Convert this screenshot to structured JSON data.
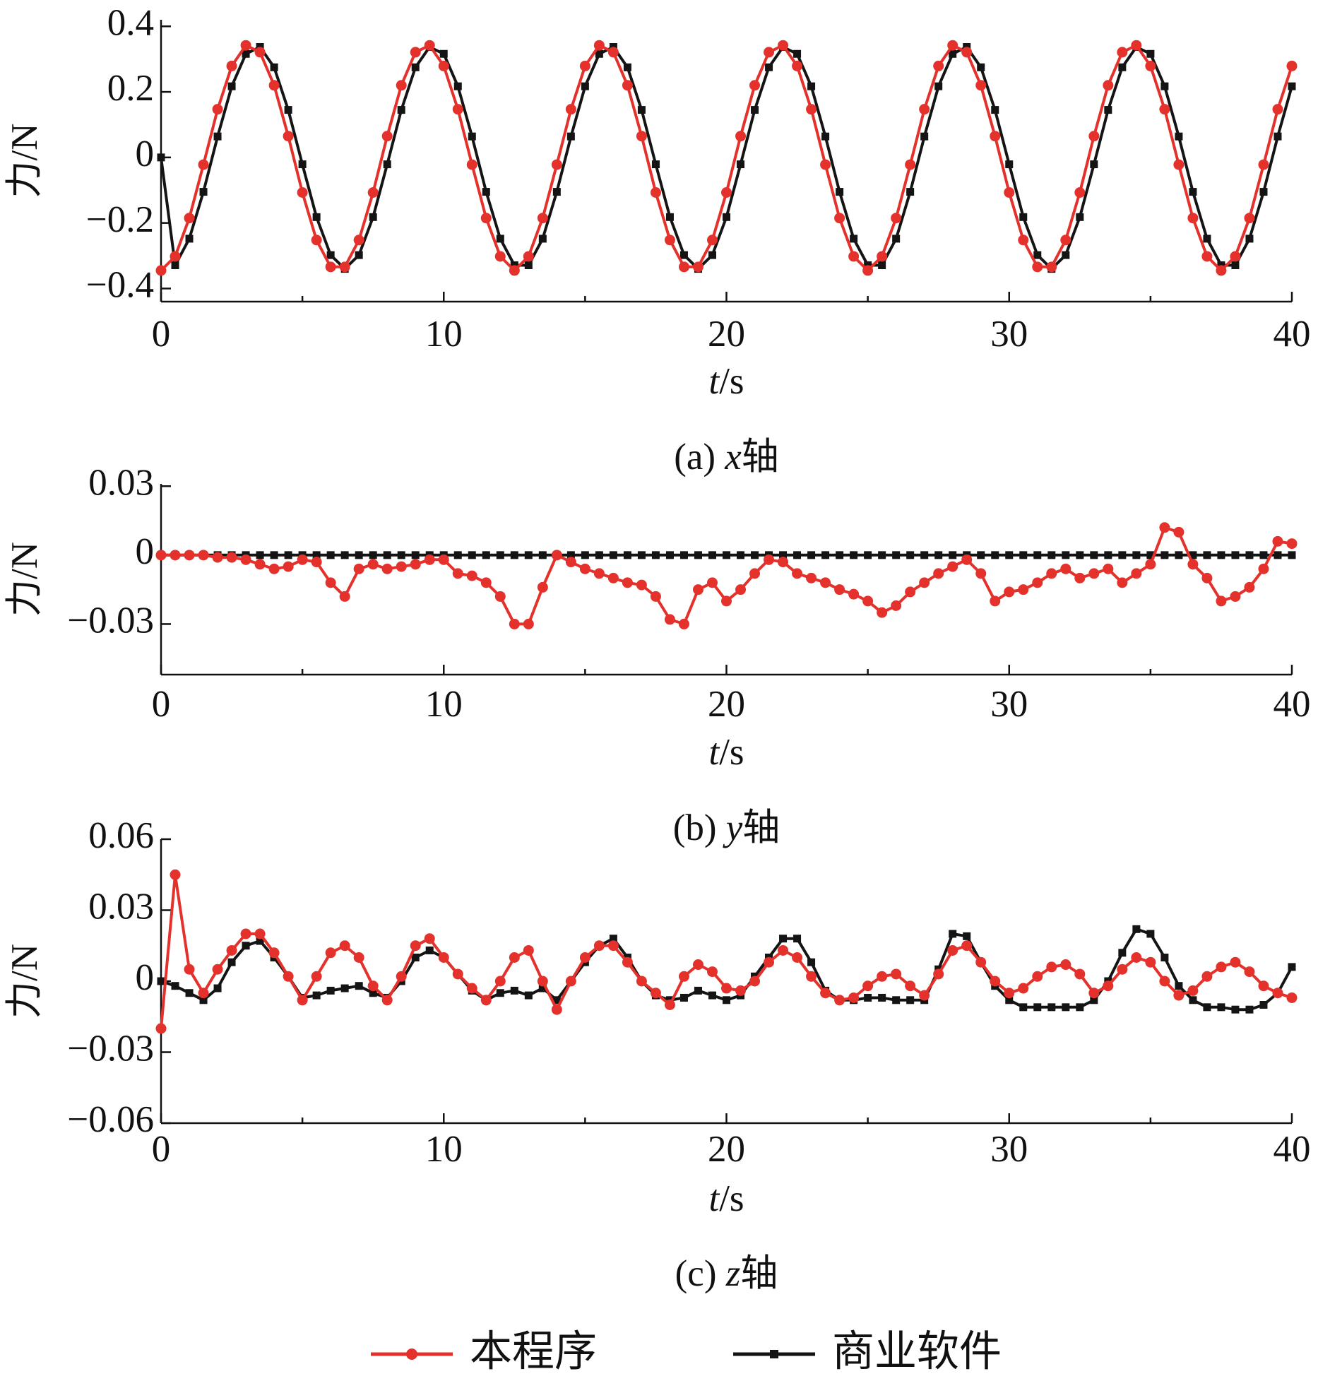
{
  "legend": [
    {
      "name": "本程序",
      "color": "#e4312b",
      "marker": "circle"
    },
    {
      "name": "商业软件",
      "color": "#141414",
      "marker": "square"
    }
  ],
  "chart_data": [
    {
      "type": "line",
      "ylabel": "力/N",
      "xlabel": [
        "t",
        "/s"
      ],
      "caption": [
        "(a) ",
        "x",
        "轴"
      ],
      "xlim": [
        0,
        40
      ],
      "xticks": [
        0,
        10,
        20,
        30,
        40
      ],
      "xminorticks": [
        5,
        15,
        25,
        35
      ],
      "ylim": [
        -0.44,
        0.42
      ],
      "yticks": [
        {
          "value": -0.4,
          "label": "−0.4"
        },
        {
          "value": -0.2,
          "label": "−0.2"
        },
        0,
        0.2,
        0.4
      ],
      "x": [
        0,
        0.5,
        1,
        1.5,
        2,
        2.5,
        3,
        3.5,
        4,
        4.5,
        5,
        5.5,
        6,
        6.5,
        7,
        7.5,
        8,
        8.5,
        9,
        9.5,
        10,
        10.5,
        11,
        11.5,
        12,
        12.5,
        13,
        13.5,
        14,
        14.5,
        15,
        15.5,
        16,
        16.5,
        17,
        17.5,
        18,
        18.5,
        19,
        19.5,
        20,
        20.5,
        21,
        21.5,
        22,
        22.5,
        23,
        23.5,
        24,
        24.5,
        25,
        25.5,
        26,
        26.5,
        27,
        27.5,
        28,
        28.5,
        29,
        29.5,
        30,
        30.5,
        31,
        31.5,
        32,
        32.5,
        33,
        33.5,
        34,
        34.5,
        35,
        35.5,
        36,
        36.5,
        37,
        37.5,
        38,
        38.5,
        39,
        39.5,
        40
      ],
      "series": [
        {
          "values": [
            -0.345,
            -0.302,
            -0.185,
            -0.022,
            0.147,
            0.279,
            0.342,
            0.321,
            0.22,
            0.065,
            -0.107,
            -0.252,
            -0.334,
            -0.334,
            -0.252,
            -0.107,
            0.065,
            0.22,
            0.321,
            0.342,
            0.279,
            0.147,
            -0.022,
            -0.185,
            -0.302,
            -0.345,
            -0.302,
            -0.185,
            -0.022,
            0.147,
            0.279,
            0.342,
            0.321,
            0.22,
            0.065,
            -0.107,
            -0.252,
            -0.334,
            -0.334,
            -0.252,
            -0.107,
            0.065,
            0.22,
            0.321,
            0.342,
            0.279,
            0.147,
            -0.022,
            -0.185,
            -0.302,
            -0.345,
            -0.302,
            -0.185,
            -0.022,
            0.147,
            0.279,
            0.342,
            0.321,
            0.22,
            0.065,
            -0.107,
            -0.252,
            -0.334,
            -0.334,
            -0.252,
            -0.107,
            0.065,
            0.22,
            0.321,
            0.342,
            0.279,
            0.147,
            -0.022,
            -0.185,
            -0.302,
            -0.345,
            -0.302,
            -0.185,
            -0.022,
            0.147,
            0.279
          ]
        },
        {
          "values": [
            0,
            -0.329,
            -0.248,
            -0.105,
            0.064,
            0.217,
            0.316,
            0.337,
            0.275,
            0.145,
            -0.021,
            -0.182,
            -0.298,
            -0.34,
            -0.298,
            -0.182,
            -0.021,
            0.145,
            0.275,
            0.337,
            0.316,
            0.217,
            0.064,
            -0.105,
            -0.248,
            -0.329,
            -0.329,
            -0.248,
            -0.105,
            0.064,
            0.217,
            0.316,
            0.337,
            0.275,
            0.145,
            -0.021,
            -0.182,
            -0.298,
            -0.34,
            -0.298,
            -0.182,
            -0.021,
            0.145,
            0.275,
            0.337,
            0.316,
            0.217,
            0.064,
            -0.105,
            -0.248,
            -0.329,
            -0.329,
            -0.248,
            -0.105,
            0.064,
            0.217,
            0.316,
            0.337,
            0.275,
            0.145,
            -0.021,
            -0.182,
            -0.298,
            -0.34,
            -0.298,
            -0.182,
            -0.021,
            0.145,
            0.275,
            0.337,
            0.316,
            0.217,
            0.064,
            -0.105,
            -0.248,
            -0.329,
            -0.329,
            -0.248,
            -0.105,
            0.064,
            0.217
          ]
        }
      ]
    },
    {
      "type": "line",
      "ylabel": "力/N",
      "xlabel": [
        "t",
        "/s"
      ],
      "caption": [
        "(b) ",
        "y",
        "轴"
      ],
      "xlim": [
        0,
        40
      ],
      "xticks": [
        0,
        10,
        20,
        30,
        40
      ],
      "xminorticks": [
        5,
        15,
        25,
        35
      ],
      "ylim": [
        -0.052,
        0.031
      ],
      "yticks": [
        {
          "value": -0.03,
          "label": "−0.03"
        },
        0,
        0.03
      ],
      "x": [
        0,
        0.5,
        1,
        1.5,
        2,
        2.5,
        3,
        3.5,
        4,
        4.5,
        5,
        5.5,
        6,
        6.5,
        7,
        7.5,
        8,
        8.5,
        9,
        9.5,
        10,
        10.5,
        11,
        11.5,
        12,
        12.5,
        13,
        13.5,
        14,
        14.5,
        15,
        15.5,
        16,
        16.5,
        17,
        17.5,
        18,
        18.5,
        19,
        19.5,
        20,
        20.5,
        21,
        21.5,
        22,
        22.5,
        23,
        23.5,
        24,
        24.5,
        25,
        25.5,
        26,
        26.5,
        27,
        27.5,
        28,
        28.5,
        29,
        29.5,
        30,
        30.5,
        31,
        31.5,
        32,
        32.5,
        33,
        33.5,
        34,
        34.5,
        35,
        35.5,
        36,
        36.5,
        37,
        37.5,
        38,
        38.5,
        39,
        39.5,
        40
      ],
      "series": [
        {
          "values": [
            0,
            0,
            0,
            0,
            -0.001,
            -0.001,
            -0.002,
            -0.004,
            -0.006,
            -0.005,
            -0.002,
            -0.003,
            -0.012,
            -0.018,
            -0.006,
            -0.004,
            -0.006,
            -0.005,
            -0.004,
            -0.002,
            -0.002,
            -0.008,
            -0.009,
            -0.012,
            -0.018,
            -0.03,
            -0.03,
            -0.014,
            0,
            -0.003,
            -0.006,
            -0.008,
            -0.01,
            -0.012,
            -0.013,
            -0.018,
            -0.028,
            -0.03,
            -0.015,
            -0.012,
            -0.02,
            -0.015,
            -0.008,
            -0.002,
            -0.003,
            -0.008,
            -0.01,
            -0.012,
            -0.015,
            -0.017,
            -0.02,
            -0.025,
            -0.022,
            -0.016,
            -0.012,
            -0.008,
            -0.005,
            -0.002,
            -0.008,
            -0.02,
            -0.016,
            -0.015,
            -0.012,
            -0.008,
            -0.006,
            -0.01,
            -0.008,
            -0.006,
            -0.012,
            -0.008,
            -0.004,
            0.012,
            0.01,
            -0.004,
            -0.01,
            -0.02,
            -0.018,
            -0.014,
            -0.006,
            0.006,
            0.005
          ]
        },
        {
          "values": [
            0,
            0,
            0,
            0,
            0,
            0,
            0,
            0,
            0,
            0,
            0,
            0,
            0,
            0,
            0,
            0,
            0,
            0,
            0,
            0,
            0,
            0,
            0,
            0,
            0,
            0,
            0,
            0,
            0,
            0,
            0,
            0,
            0,
            0,
            0,
            0,
            0,
            0,
            0,
            0,
            0,
            0,
            0,
            0,
            0,
            0,
            0,
            0,
            0,
            0,
            0,
            0,
            0,
            0,
            0,
            0,
            0,
            0,
            0,
            0,
            0,
            0,
            0,
            0,
            0,
            0,
            0,
            0,
            0,
            0,
            0,
            0,
            0,
            0,
            0,
            0,
            0,
            0,
            0,
            0,
            0
          ]
        }
      ]
    },
    {
      "type": "line",
      "ylabel": "力/N",
      "xlabel": [
        "t",
        "/s"
      ],
      "caption": [
        "(c) ",
        "z",
        "轴"
      ],
      "xlim": [
        0,
        40
      ],
      "xticks": [
        0,
        10,
        20,
        30,
        40
      ],
      "xminorticks": [
        5,
        15,
        25,
        35
      ],
      "ylim": [
        -0.06,
        0.06
      ],
      "yticks": [
        {
          "value": -0.06,
          "label": "−0.06"
        },
        {
          "value": -0.03,
          "label": "−0.03"
        },
        0,
        0.03,
        0.06
      ],
      "x": [
        0,
        0.5,
        1,
        1.5,
        2,
        2.5,
        3,
        3.5,
        4,
        4.5,
        5,
        5.5,
        6,
        6.5,
        7,
        7.5,
        8,
        8.5,
        9,
        9.5,
        10,
        10.5,
        11,
        11.5,
        12,
        12.5,
        13,
        13.5,
        14,
        14.5,
        15,
        15.5,
        16,
        16.5,
        17,
        17.5,
        18,
        18.5,
        19,
        19.5,
        20,
        20.5,
        21,
        21.5,
        22,
        22.5,
        23,
        23.5,
        24,
        24.5,
        25,
        25.5,
        26,
        26.5,
        27,
        27.5,
        28,
        28.5,
        29,
        29.5,
        30,
        30.5,
        31,
        31.5,
        32,
        32.5,
        33,
        33.5,
        34,
        34.5,
        35,
        35.5,
        36,
        36.5,
        37,
        37.5,
        38,
        38.5,
        39,
        39.5,
        40
      ],
      "series": [
        {
          "values": [
            -0.02,
            0.045,
            0.005,
            -0.005,
            0.005,
            0.013,
            0.02,
            0.02,
            0.012,
            0.002,
            -0.008,
            0.002,
            0.012,
            0.015,
            0.01,
            -0.002,
            -0.008,
            0.002,
            0.015,
            0.018,
            0.01,
            0.003,
            -0.003,
            -0.008,
            0,
            0.01,
            0.013,
            0,
            -0.012,
            0,
            0.01,
            0.015,
            0.015,
            0.008,
            0,
            -0.005,
            -0.01,
            0.002,
            0.007,
            0.004,
            -0.003,
            -0.004,
            0,
            0.008,
            0.013,
            0.01,
            0.002,
            -0.005,
            -0.008,
            -0.007,
            -0.002,
            0.002,
            0.003,
            -0.002,
            -0.006,
            0.003,
            0.013,
            0.015,
            0.008,
            0,
            -0.005,
            -0.003,
            0.002,
            0.006,
            0.007,
            0.003,
            -0.005,
            -0.002,
            0.005,
            0.01,
            0.008,
            0,
            -0.006,
            -0.004,
            0.002,
            0.006,
            0.008,
            0.004,
            -0.002,
            -0.005,
            -0.007
          ]
        },
        {
          "values": [
            0,
            -0.002,
            -0.005,
            -0.008,
            -0.003,
            0.008,
            0.015,
            0.017,
            0.01,
            0.002,
            -0.007,
            -0.006,
            -0.004,
            -0.003,
            -0.002,
            -0.005,
            -0.007,
            0,
            0.01,
            0.013,
            0.01,
            0.003,
            -0.004,
            -0.008,
            -0.005,
            -0.004,
            -0.006,
            -0.003,
            -0.008,
            0,
            0.008,
            0.015,
            0.018,
            0.01,
            0,
            -0.006,
            -0.008,
            -0.007,
            -0.004,
            -0.006,
            -0.008,
            -0.006,
            0.002,
            0.01,
            0.018,
            0.018,
            0.008,
            -0.004,
            -0.008,
            -0.008,
            -0.007,
            -0.007,
            -0.008,
            -0.008,
            -0.008,
            0.005,
            0.02,
            0.019,
            0.008,
            -0.002,
            -0.008,
            -0.011,
            -0.011,
            -0.011,
            -0.011,
            -0.011,
            -0.008,
            0,
            0.012,
            0.022,
            0.02,
            0.01,
            -0.002,
            -0.008,
            -0.011,
            -0.011,
            -0.012,
            -0.012,
            -0.01,
            -0.005,
            0.006
          ]
        }
      ]
    }
  ]
}
